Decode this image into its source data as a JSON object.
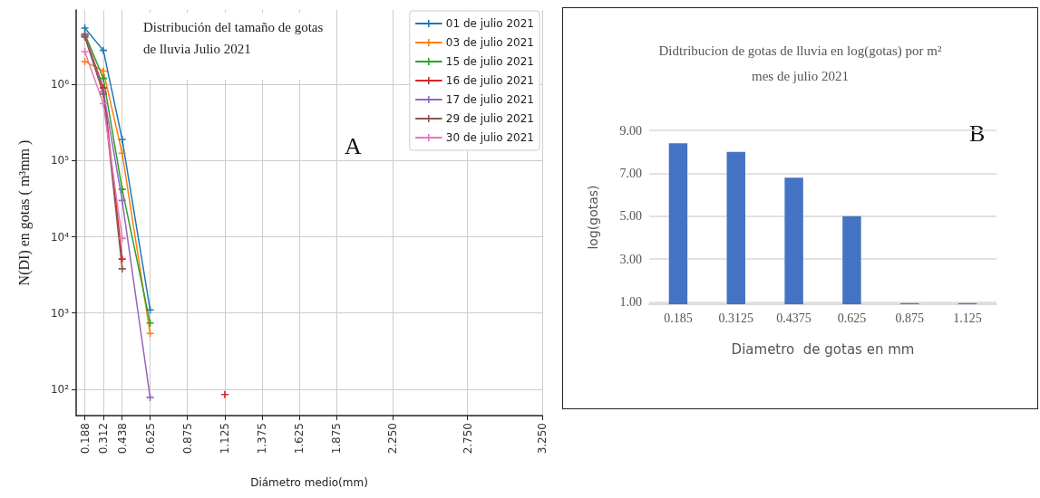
{
  "chart_data": [
    {
      "type": "line",
      "title": "Distribución del tamaño de gotas\nde lluvia Julio 2021",
      "xlabel": "Diámetro medio(mm)",
      "ylabel": "N(DI) en gotas ( m³mm )",
      "annotations": [
        "A"
      ],
      "log": "y",
      "grid": true,
      "legend": "top right",
      "marker": "cross",
      "line_style": "solid",
      "xlim": [
        0.13,
        3.25
      ],
      "xticks": [
        0.188,
        0.312,
        0.438,
        0.625,
        0.875,
        1.125,
        1.375,
        1.625,
        1.875,
        {
          "value": 2.25,
          "label": "2.250"
        },
        {
          "value": 2.75,
          "label": "2.750"
        },
        {
          "value": 3.25,
          "label": "3.250"
        }
      ],
      "ylim": [
        45,
        9500000
      ],
      "yticks": [
        {
          "value": 100,
          "label": "10²"
        },
        {
          "value": 1000,
          "label": "10³"
        },
        {
          "value": 10000,
          "label": "10⁴"
        },
        {
          "value": 100000,
          "label": "10⁵"
        },
        {
          "value": 1000000,
          "label": "10⁶"
        }
      ],
      "series": [
        {
          "name": "01 de julio 2021",
          "color": "#1f77b4",
          "x": [
            0.188,
            0.312,
            0.438,
            0.625
          ],
          "values": [
            5500000,
            2800000,
            190000,
            1100
          ]
        },
        {
          "name": "03 de julio 2021",
          "color": "#ff7f0e",
          "x": [
            0.188,
            0.312,
            0.438,
            0.625
          ],
          "values": [
            2000000,
            1500000,
            125000,
            540
          ]
        },
        {
          "name": "15 de julio 2021",
          "color": "#2ca02c",
          "x": [
            0.188,
            0.312,
            0.438,
            0.625
          ],
          "values": [
            4600000,
            1200000,
            42000,
            740
          ]
        },
        {
          "name": "16 de julio 2021",
          "color": "#d62728",
          "x": [
            0.188,
            0.312,
            0.438,
            0.625,
            1.125
          ],
          "values": [
            4400000,
            900000,
            5100,
            null,
            85
          ]
        },
        {
          "name": "17 de julio 2021",
          "color": "#9467bd",
          "x": [
            0.188,
            0.312,
            0.438,
            0.625
          ],
          "values": [
            4400000,
            800000,
            30000,
            78
          ]
        },
        {
          "name": "29 de julio 2021",
          "color": "#8c564b",
          "x": [
            0.188,
            0.312,
            0.438
          ],
          "values": [
            4200000,
            750000,
            3800
          ]
        },
        {
          "name": "30 de julio 2021",
          "color": "#e377c2",
          "x": [
            0.188,
            0.312,
            0.438
          ],
          "values": [
            2700000,
            560000,
            9500
          ]
        }
      ]
    },
    {
      "type": "bar",
      "title": "Didtribucion de gotas de lluvia en log(gotas) por m²\nmes de julio 2021",
      "xlabel": "Diametro  de gotas en mm",
      "ylabel": "log(gotas)",
      "annotations": [
        "B"
      ],
      "grid": "y",
      "legend": false,
      "categories": [
        "0.185",
        "0.3125",
        "0.4375",
        "0.625",
        "0.875",
        "1.125"
      ],
      "values": [
        8.4,
        8.0,
        6.8,
        5.0,
        0.95,
        0.95
      ],
      "color": "#4472c4",
      "ylim": [
        0.9,
        9
      ],
      "yticks": [
        {
          "value": 1,
          "label": "1.00"
        },
        {
          "value": 3,
          "label": "3.00"
        },
        {
          "value": 5,
          "label": "5.00"
        },
        {
          "value": 7,
          "label": "7.00"
        },
        {
          "value": 9,
          "label": "9.00"
        }
      ]
    }
  ]
}
